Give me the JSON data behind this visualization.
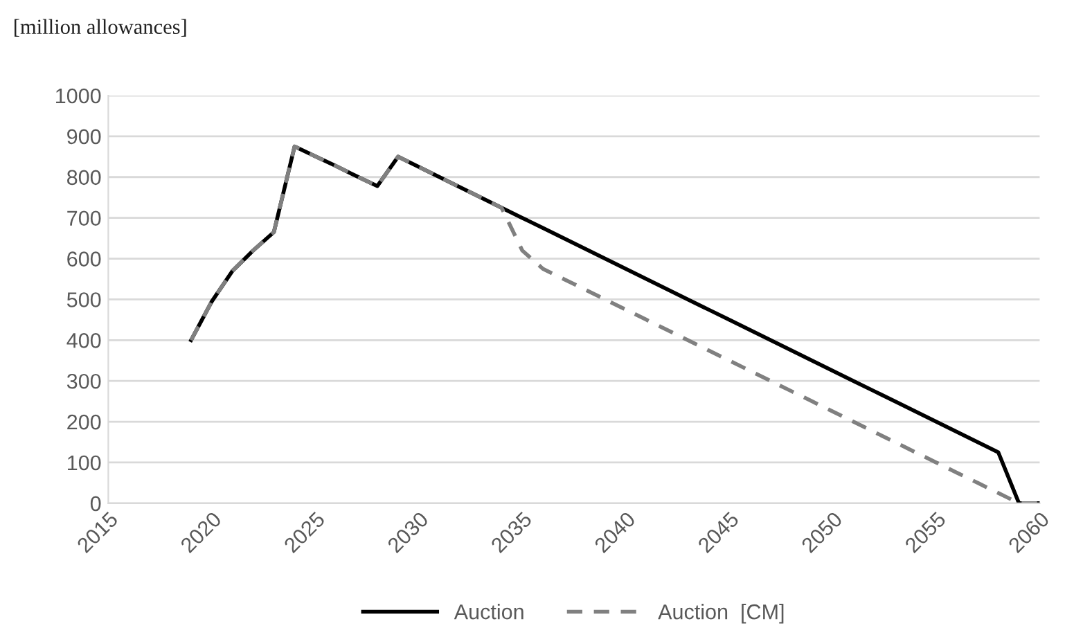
{
  "chart_data": {
    "type": "line",
    "ylabel": "[million allowances]",
    "x": [
      2019,
      2020,
      2021,
      2022,
      2023,
      2024,
      2025,
      2026,
      2027,
      2028,
      2029,
      2030,
      2031,
      2032,
      2033,
      2034,
      2035,
      2036,
      2037,
      2038,
      2039,
      2040,
      2041,
      2042,
      2043,
      2044,
      2045,
      2046,
      2047,
      2048,
      2049,
      2050,
      2051,
      2052,
      2053,
      2054,
      2055,
      2056,
      2057,
      2058,
      2059,
      2060
    ],
    "series": [
      {
        "name": "Auction",
        "color": "#000000",
        "line_style": "solid",
        "values": [
          400,
          495,
          570,
          620,
          665,
          875,
          851,
          827,
          802,
          778,
          850,
          825,
          800,
          775,
          750,
          725,
          700,
          675,
          650,
          625,
          600,
          575,
          550,
          525,
          500,
          475,
          450,
          425,
          400,
          375,
          350,
          325,
          300,
          275,
          250,
          225,
          200,
          175,
          150,
          125,
          0,
          0
        ]
      },
      {
        "name": "Auction  [CM]",
        "color": "#808080",
        "line_style": "dashed",
        "values": [
          400,
          495,
          570,
          620,
          665,
          875,
          851,
          827,
          802,
          778,
          850,
          825,
          800,
          775,
          750,
          725,
          620,
          575,
          550,
          525,
          500,
          475,
          450,
          425,
          400,
          375,
          350,
          325,
          300,
          275,
          250,
          225,
          200,
          175,
          150,
          125,
          100,
          75,
          50,
          25,
          0,
          0
        ]
      }
    ],
    "xlim": [
      2015,
      2060
    ],
    "xticks": [
      2015,
      2020,
      2025,
      2030,
      2035,
      2040,
      2045,
      2050,
      2055,
      2060
    ],
    "ylim": [
      0,
      1000
    ],
    "yticks": [
      0,
      100,
      200,
      300,
      400,
      500,
      600,
      700,
      800,
      900,
      1000
    ],
    "grid": "y",
    "legend": "bottom"
  }
}
